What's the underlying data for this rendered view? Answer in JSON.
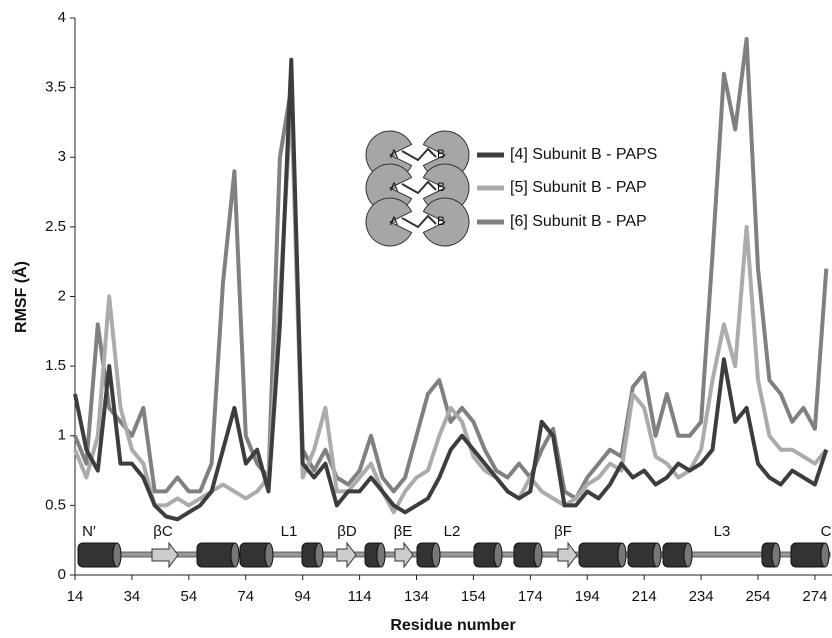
{
  "chart_data": {
    "type": "line",
    "xlabel": "Residue number",
    "ylabel": "RMSF (Å)",
    "xlim": [
      14,
      280
    ],
    "ylim": [
      0,
      4
    ],
    "xticks": [
      14,
      34,
      54,
      74,
      94,
      114,
      134,
      154,
      174,
      194,
      214,
      234,
      254,
      274
    ],
    "yticks": [
      0,
      0.5,
      1,
      1.5,
      2,
      2.5,
      3,
      3.5,
      4
    ],
    "structure_labels": [
      "N′",
      "βC",
      "L1",
      "βD",
      "βE",
      "L2",
      "βF",
      "L3",
      "C"
    ],
    "subunit_labels": [
      "A",
      "B"
    ],
    "x": [
      14,
      18,
      22,
      26,
      30,
      34,
      38,
      42,
      46,
      50,
      54,
      58,
      62,
      66,
      70,
      74,
      78,
      82,
      86,
      90,
      94,
      98,
      102,
      106,
      110,
      114,
      118,
      122,
      126,
      130,
      134,
      138,
      142,
      146,
      150,
      154,
      158,
      162,
      166,
      170,
      174,
      178,
      182,
      186,
      190,
      194,
      198,
      202,
      206,
      210,
      214,
      218,
      222,
      226,
      230,
      234,
      238,
      242,
      246,
      250,
      254,
      258,
      262,
      266,
      270,
      274,
      278
    ],
    "series": [
      {
        "name": "[4] Subunit B - PAPS",
        "color": "#3d3d3d",
        "values": [
          1.3,
          0.9,
          0.75,
          1.5,
          0.8,
          0.8,
          0.7,
          0.5,
          0.42,
          0.4,
          0.45,
          0.5,
          0.6,
          0.9,
          1.2,
          0.8,
          0.9,
          0.6,
          1.8,
          3.7,
          0.8,
          0.7,
          0.8,
          0.5,
          0.6,
          0.6,
          0.7,
          0.6,
          0.5,
          0.45,
          0.5,
          0.55,
          0.7,
          0.9,
          1.0,
          0.9,
          0.8,
          0.7,
          0.6,
          0.55,
          0.6,
          1.1,
          1.0,
          0.5,
          0.5,
          0.6,
          0.55,
          0.65,
          0.8,
          0.7,
          0.75,
          0.65,
          0.7,
          0.8,
          0.75,
          0.8,
          0.9,
          1.55,
          1.1,
          1.2,
          0.8,
          0.7,
          0.65,
          0.75,
          0.7,
          0.65,
          0.9
        ]
      },
      {
        "name": "[5] Subunit B - PAP",
        "color": "#ababab",
        "values": [
          0.9,
          0.7,
          1.0,
          2.0,
          1.2,
          0.9,
          0.8,
          0.5,
          0.5,
          0.55,
          0.5,
          0.55,
          0.6,
          0.65,
          0.6,
          0.55,
          0.6,
          0.7,
          2.0,
          3.4,
          0.7,
          0.9,
          1.2,
          0.6,
          0.6,
          0.7,
          0.8,
          0.6,
          0.45,
          0.6,
          0.7,
          0.75,
          1.0,
          1.2,
          1.1,
          0.85,
          0.75,
          0.7,
          0.6,
          0.55,
          0.7,
          0.6,
          0.55,
          0.5,
          0.55,
          0.65,
          0.7,
          0.8,
          0.75,
          1.3,
          1.2,
          0.85,
          0.8,
          0.7,
          0.75,
          0.9,
          1.4,
          1.8,
          1.5,
          2.5,
          1.4,
          1.0,
          0.9,
          0.9,
          0.85,
          0.8,
          0.9
        ]
      },
      {
        "name": "[6] Subunit B - PAP",
        "color": "#808080",
        "values": [
          1.0,
          0.8,
          1.8,
          1.2,
          1.1,
          1.0,
          1.2,
          0.6,
          0.6,
          0.7,
          0.6,
          0.6,
          0.8,
          2.1,
          2.9,
          1.0,
          0.8,
          0.7,
          3.0,
          3.5,
          0.9,
          0.75,
          0.9,
          0.7,
          0.65,
          0.75,
          1.0,
          0.7,
          0.6,
          0.7,
          1.0,
          1.3,
          1.4,
          1.1,
          1.2,
          1.1,
          0.9,
          0.75,
          0.7,
          0.8,
          0.7,
          0.9,
          1.05,
          0.6,
          0.55,
          0.7,
          0.8,
          0.9,
          0.85,
          1.35,
          1.45,
          1.0,
          1.3,
          1.0,
          1.0,
          1.1,
          2.3,
          3.6,
          3.2,
          3.85,
          2.2,
          1.4,
          1.3,
          1.1,
          1.2,
          1.05,
          2.2
        ]
      }
    ]
  }
}
